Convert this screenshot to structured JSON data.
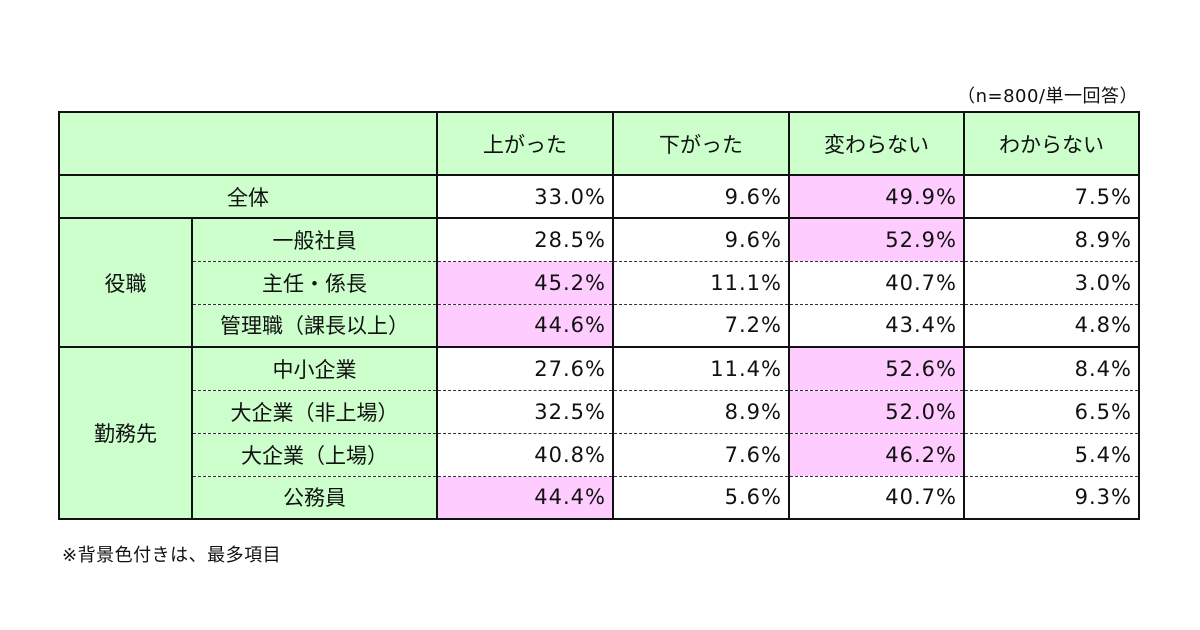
{
  "note_top": "（n=800/単一回答）",
  "note_bottom": "※背景色付きは、最多項目",
  "colors": {
    "header_bg": "#ccffcc",
    "highlight_bg": "#ffccff"
  },
  "chart_data": {
    "type": "table",
    "columns": [
      "上がった",
      "下がった",
      "変わらない",
      "わからない"
    ],
    "rows": [
      {
        "group": "",
        "label": "全体",
        "values": [
          "33.0%",
          "9.6%",
          "49.9%",
          "7.5%"
        ],
        "max_index": 2
      },
      {
        "group": "役職",
        "label": "一般社員",
        "values": [
          "28.5%",
          "9.6%",
          "52.9%",
          "8.9%"
        ],
        "max_index": 2
      },
      {
        "group": "役職",
        "label": "主任・係長",
        "values": [
          "45.2%",
          "11.1%",
          "40.7%",
          "3.0%"
        ],
        "max_index": 0
      },
      {
        "group": "役職",
        "label": "管理職（課長以上）",
        "values": [
          "44.6%",
          "7.2%",
          "43.4%",
          "4.8%"
        ],
        "max_index": 0
      },
      {
        "group": "勤務先",
        "label": "中小企業",
        "values": [
          "27.6%",
          "11.4%",
          "52.6%",
          "8.4%"
        ],
        "max_index": 2
      },
      {
        "group": "勤務先",
        "label": "大企業（非上場）",
        "values": [
          "32.5%",
          "8.9%",
          "52.0%",
          "6.5%"
        ],
        "max_index": 2
      },
      {
        "group": "勤務先",
        "label": "大企業（上場）",
        "values": [
          "40.8%",
          "7.6%",
          "46.2%",
          "5.4%"
        ],
        "max_index": 2
      },
      {
        "group": "勤務先",
        "label": "公務員",
        "values": [
          "44.4%",
          "5.6%",
          "40.7%",
          "9.3%"
        ],
        "max_index": 0
      }
    ],
    "groups": [
      {
        "name": "役職",
        "row_count": 3
      },
      {
        "name": "勤務先",
        "row_count": 4
      }
    ]
  }
}
